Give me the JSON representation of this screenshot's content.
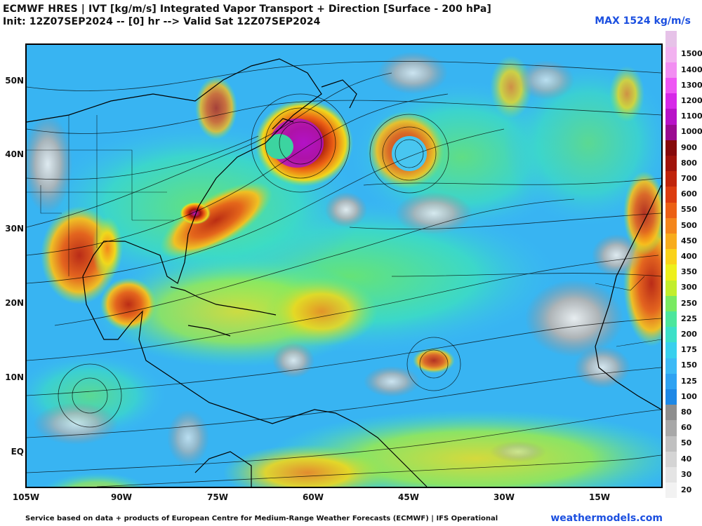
{
  "header": {
    "title_line1": "ECMWF HRES | IVT [kg/m/s] Integrated Vapor Transport + Direction [Surface - 200 hPa]",
    "title_line2": "Init: 12Z07SEP2024 -- [0] hr --> Valid Sat 12Z07SEP2024",
    "max_label": "MAX 1524 kg/m/s"
  },
  "axes": {
    "lat_labels": [
      "50N",
      "40N",
      "30N",
      "20N",
      "10N",
      "EQ"
    ],
    "lon_labels": [
      "105W",
      "90W",
      "75W",
      "60W",
      "45W",
      "30W",
      "15W"
    ]
  },
  "colorbar": {
    "levels": [
      "20",
      "30",
      "40",
      "50",
      "60",
      "80",
      "100",
      "125",
      "150",
      "175",
      "200",
      "225",
      "250",
      "300",
      "350",
      "400",
      "450",
      "500",
      "550",
      "600",
      "700",
      "800",
      "900",
      "1000",
      "1100",
      "1200",
      "1300",
      "1400",
      "1500"
    ],
    "colors": [
      "#f2f2f2",
      "#e4e4e4",
      "#d4d4d4",
      "#c0c0c0",
      "#a8a8a8",
      "#8e8e8e",
      "#1e88e6",
      "#2ea2f2",
      "#3cbaf6",
      "#38d0ee",
      "#3ce0c8",
      "#4ce69c",
      "#7aea62",
      "#c2ee2c",
      "#eef01c",
      "#fad21a",
      "#f8ac1c",
      "#f4861c",
      "#ec6014",
      "#dc3c10",
      "#c0240c",
      "#a0140c",
      "#860a0c",
      "#9a0a90",
      "#b812c8",
      "#d628e8",
      "#ee56f4",
      "#f28ef2",
      "#f2b2f0",
      "#e6c2e8"
    ]
  },
  "footer": {
    "credit": "Service based on data + products of European Centre for Medium-Range Weather Forecasts (ECMWF) | IFS Operational",
    "site": "weathermodels.com"
  }
}
